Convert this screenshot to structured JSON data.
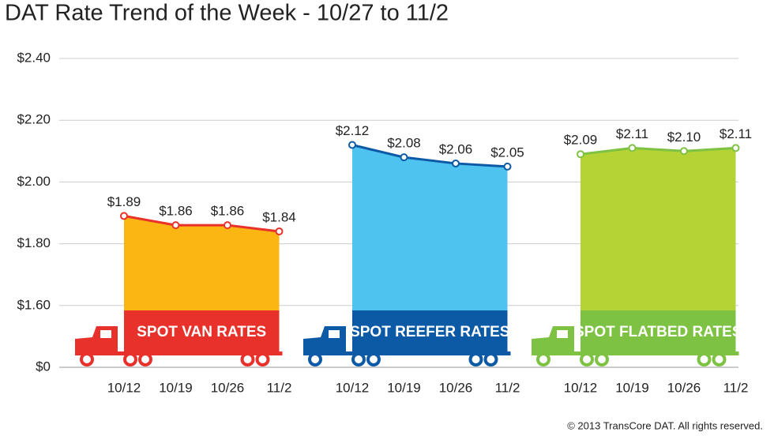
{
  "title": "DAT Rate Trend of the Week - 10/27 to 11/2",
  "copyright": "© 2013 TransCore DAT. All rights reserved.",
  "chart_data": [
    {
      "type": "area",
      "name": "SPOT VAN RATES",
      "color": "#e8312a",
      "fill": "#fbb614",
      "categories": [
        "10/12",
        "10/19",
        "10/26",
        "11/2"
      ],
      "values": [
        1.89,
        1.86,
        1.86,
        1.84
      ],
      "value_labels": [
        "$1.89",
        "$1.86",
        "$1.86",
        "$1.84"
      ],
      "ylim": [
        0,
        2.4
      ],
      "yticks": [
        {
          "value": 0,
          "label": "$0"
        },
        {
          "value": 1.6,
          "label": "$1.60"
        },
        {
          "value": 1.8,
          "label": "$1.80"
        },
        {
          "value": 2.0,
          "label": "$2.00"
        },
        {
          "value": 2.2,
          "label": "$2.20"
        },
        {
          "value": 2.4,
          "label": "$2.40"
        }
      ],
      "grid": true
    },
    {
      "type": "area",
      "name": "SPOT REEFER RATES",
      "color": "#0c5aa6",
      "fill": "#4fc3f0",
      "categories": [
        "10/12",
        "10/19",
        "10/26",
        "11/2"
      ],
      "values": [
        2.12,
        2.08,
        2.06,
        2.05
      ],
      "value_labels": [
        "$2.12",
        "$2.08",
        "$2.06",
        "$2.05"
      ]
    },
    {
      "type": "area",
      "name": "SPOT FLATBED RATES",
      "color": "#7dc242",
      "fill": "#b5d334",
      "categories": [
        "10/12",
        "10/19",
        "10/26",
        "11/2"
      ],
      "values": [
        2.09,
        2.11,
        2.1,
        2.11
      ],
      "value_labels": [
        "$2.09",
        "$2.11",
        "$2.10",
        "$2.11"
      ]
    }
  ]
}
